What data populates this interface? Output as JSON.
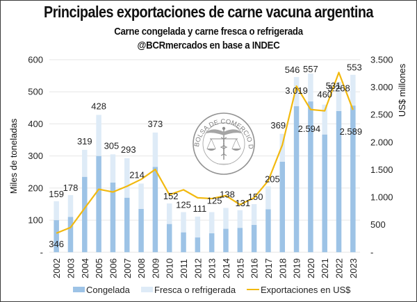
{
  "header": {
    "title": "Principales exportaciones de carne vacuna argentina",
    "subtitle": "Carne congelada y carne fresca o refrigerada",
    "source": "@BCRmercados en base a INDEC"
  },
  "watermark": {
    "text": "BOLSA DE COMERCIO DE ROSARIO",
    "icon": "caduceus-scales-seal-icon"
  },
  "colors": {
    "congelada": "#9dc3e6",
    "fresca": "#deebf7",
    "line": "#f2b90f",
    "grid": "#e6e6e6"
  },
  "chart_data": {
    "type": "bar",
    "stacked": true,
    "title": "Principales exportaciones de carne vacuna argentina",
    "subtitle": "Carne congelada y carne fresca o refrigerada",
    "ylabel": "Miles de toneladas",
    "y2label": "US$ millones",
    "ylim": [
      0,
      600
    ],
    "y2lim": [
      0,
      3500
    ],
    "yticks": [
      0,
      100,
      200,
      300,
      400,
      500,
      600
    ],
    "ytick_labels": [
      "-",
      "100",
      "200",
      "300",
      "400",
      "500",
      "600"
    ],
    "y2ticks": [
      0,
      500,
      1000,
      1500,
      2000,
      2500,
      3000,
      3500
    ],
    "y2tick_labels": [
      "-",
      "500",
      "1.000",
      "1.500",
      "2.000",
      "2.500",
      "3.000",
      "3.500"
    ],
    "grid": true,
    "legend": "bottom",
    "categories": [
      "2002",
      "2003",
      "2004",
      "2005",
      "2006",
      "2007",
      "2008",
      "2009",
      "2010",
      "2011",
      "2012",
      "2013",
      "2014",
      "2015",
      "2016",
      "2017",
      "2018",
      "2019",
      "2020",
      "2021",
      "2022",
      "2023"
    ],
    "series": [
      {
        "name": "Congelada",
        "type": "bar",
        "axis": "left",
        "values": [
          100,
          110,
          235,
          300,
          217,
          170,
          135,
          266,
          88,
          62,
          46,
          59,
          73,
          76,
          85,
          134,
          282,
          455,
          470,
          367,
          440,
          457
        ]
      },
      {
        "name": "Fresca o refrigerada",
        "type": "bar",
        "axis": "left",
        "values": [
          59,
          68,
          84,
          128,
          88,
          123,
          79,
          107,
          64,
          63,
          65,
          66,
          65,
          55,
          65,
          71,
          87,
          91,
          87,
          93,
          91,
          96
        ]
      },
      {
        "name": "Exportaciones en US$",
        "type": "line",
        "axis": "right",
        "values": [
          346,
          450,
          800,
          1145,
          1095,
          1200,
          1325,
          1505,
          1045,
          1135,
          990,
          975,
          1030,
          865,
          990,
          1300,
          1950,
          3019,
          2594,
          2570,
          3268,
          2589
        ]
      }
    ],
    "total_labels": [
      "159",
      "178",
      "319",
      "428",
      "305",
      "293",
      "214",
      "373",
      "152",
      "125",
      "111",
      "125",
      "138",
      "131",
      "150",
      "205",
      "369",
      "546",
      "557",
      "460",
      "531",
      "553"
    ],
    "line_labels": [
      {
        "category": "2002",
        "text": "346"
      },
      {
        "category": "2019",
        "text": "3.019"
      },
      {
        "category": "2020",
        "text": "2.594"
      },
      {
        "category": "2022",
        "text": "3.268"
      },
      {
        "category": "2023",
        "text": "2.589"
      }
    ]
  },
  "legend": {
    "items": [
      {
        "label": "Congelada",
        "kind": "box",
        "color_key": "congelada"
      },
      {
        "label": "Fresca o refrigerada",
        "kind": "box",
        "color_key": "fresca"
      },
      {
        "label": "Exportaciones en US$",
        "kind": "line",
        "color_key": "line"
      }
    ]
  }
}
